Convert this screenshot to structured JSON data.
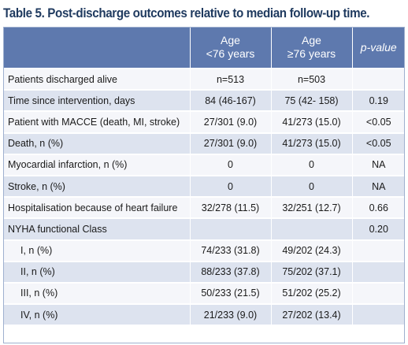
{
  "caption": "Table 5. Post-discharge outcomes relative to median follow-up time.",
  "header": {
    "col1": "",
    "col2_line1": "Age",
    "col2_line2": "<76 years",
    "col3_line1": "Age",
    "col3_line2": "≥76 years",
    "col4": "p-value"
  },
  "rows": [
    {
      "label": "Patients discharged alive",
      "a": "n=513",
      "b": "n=503",
      "p": ""
    },
    {
      "label": "Time since intervention, days",
      "a": "84 (46-167)",
      "b": "75 (42-  158)",
      "p": "0.19"
    },
    {
      "label": "Patient with MACCE (death, MI, stroke)",
      "a": "27/301 (9.0)",
      "b": "41/273 (15.0)",
      "p": "<0.05"
    },
    {
      "label": "Death, n (%)",
      "a": "27/301 (9.0)",
      "b": "41/273 (15.0)",
      "p": "<0.05"
    },
    {
      "label": "Myocardial infarction, n (%)",
      "a": "0",
      "b": "0",
      "p": "NA"
    },
    {
      "label": "Stroke, n (%)",
      "a": "0",
      "b": "0",
      "p": "NA"
    },
    {
      "label": "Hospitalisation because of heart failure",
      "a": "32/278 (11.5)",
      "b": "32/251 (12.7)",
      "p": "0.66"
    },
    {
      "label": "NYHA functional Class",
      "a": "",
      "b": "",
      "p": "0.20"
    },
    {
      "label": "I, n (%)",
      "a": "74/233 (31.8)",
      "b": "49/202 (24.3)",
      "p": ""
    },
    {
      "label": "II, n (%)",
      "a": "88/233 (37.8)",
      "b": "75/202 (37.1)",
      "p": ""
    },
    {
      "label": "III, n (%)",
      "a": "50/233 (21.5)",
      "b": "51/202 (25.2)",
      "p": ""
    },
    {
      "label": "IV, n (%)",
      "a": "21/233 (9.0)",
      "b": "27/202 (13.4)",
      "p": ""
    }
  ]
}
